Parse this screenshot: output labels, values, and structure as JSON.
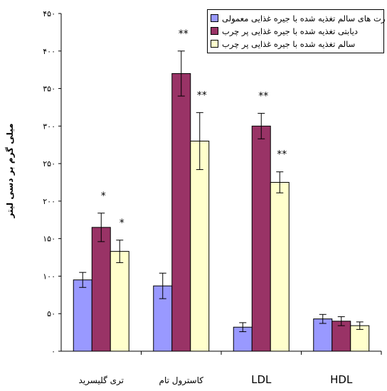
{
  "chart_data": {
    "type": "bar",
    "title": "",
    "xlabel": "",
    "ylabel": "میلی گرم بر دسی لیتر",
    "ylim": [
      0,
      450
    ],
    "yticks": [
      "۰",
      "۵۰",
      "۱۰۰",
      "۱۵۰",
      "۲۰۰",
      "۲۵۰",
      "۳۰۰",
      "۳۵۰",
      "۴۰۰",
      "۴۵۰"
    ],
    "categories": [
      "تری گلیسرید",
      "کاسترول تام",
      "LDL",
      "HDL"
    ],
    "series": [
      {
        "name": "رت های سالم تغذیه شده با جیره غذایی معمولی",
        "color": "#9999ff",
        "values": [
          95,
          87,
          32,
          43
        ],
        "errors": [
          10,
          17,
          6,
          6
        ],
        "significance": [
          "",
          "",
          "",
          ""
        ]
      },
      {
        "name": "دیابتی تغذیه شده با جیره غذایی پر چرب",
        "color": "#993366",
        "values": [
          165,
          370,
          300,
          40
        ],
        "errors": [
          19,
          30,
          17,
          6
        ],
        "significance": [
          "*",
          "**",
          "**",
          ""
        ]
      },
      {
        "name": "سالم تغذیه شده با جیره غذایی پر چرب",
        "color": "#ffffcc",
        "values": [
          133,
          280,
          225,
          34
        ],
        "errors": [
          15,
          38,
          14,
          5
        ],
        "significance": [
          "*",
          "**",
          "**",
          ""
        ]
      }
    ],
    "legend_position": "top-right",
    "grid": false
  }
}
